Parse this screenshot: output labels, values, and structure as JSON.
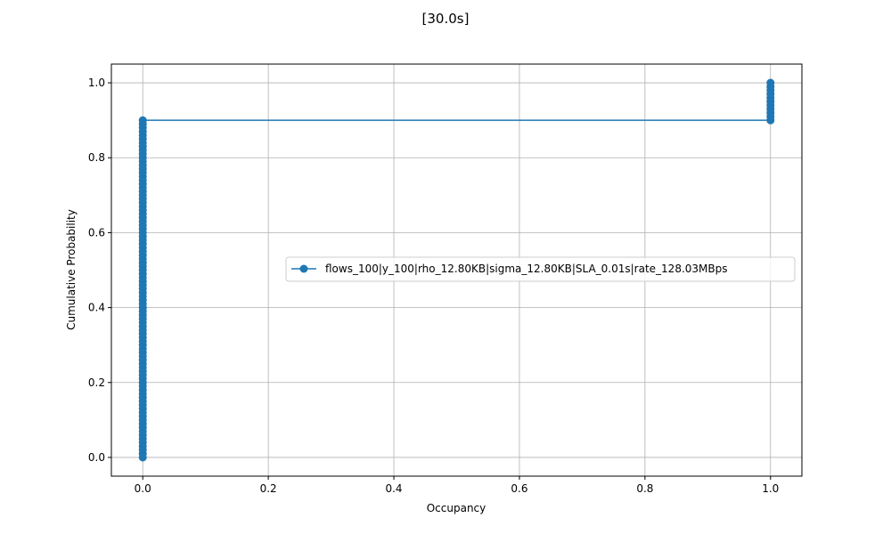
{
  "chart_data": {
    "type": "line",
    "title": "[30.0s]",
    "xlabel": "Occupancy",
    "ylabel": "Cumulative Probability",
    "xlim": [
      -0.05,
      1.05
    ],
    "ylim": [
      -0.05,
      1.05
    ],
    "xticks": [
      0.0,
      0.2,
      0.4,
      0.6,
      0.8,
      1.0
    ],
    "yticks": [
      0.0,
      0.2,
      0.4,
      0.6,
      0.8,
      1.0
    ],
    "xtick_labels": [
      "0.0",
      "0.2",
      "0.4",
      "0.6",
      "0.8",
      "1.0"
    ],
    "ytick_labels": [
      "0.0",
      "0.2",
      "0.4",
      "0.6",
      "0.8",
      "1.0"
    ],
    "grid": true,
    "legend_position": "center-right",
    "series": [
      {
        "name": "flows_100|y_100|rho_12.80KB|sigma_12.80KB|SLA_0.01s|rate_128.03MBps",
        "color": "#1f77b4",
        "marker": "circle",
        "segments": [
          {
            "x": 0.0,
            "y_from": 0.0,
            "y_to": 0.9,
            "count": 90
          },
          {
            "x": 1.0,
            "y_from": 0.9,
            "y_to": 1.0,
            "count": 10
          }
        ]
      }
    ]
  }
}
